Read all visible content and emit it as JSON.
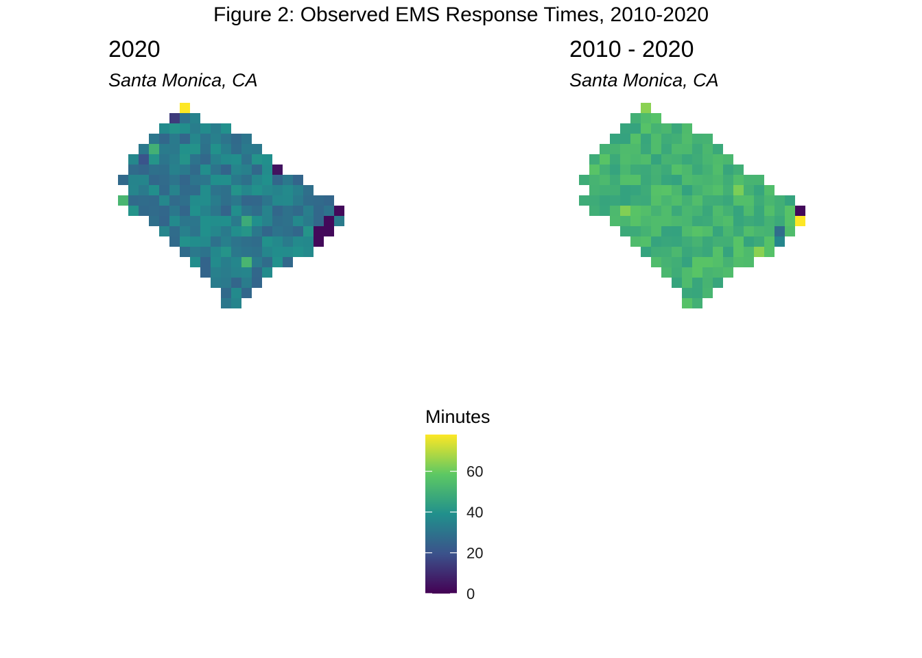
{
  "figure_title": "Figure 2: Observed EMS Response Times, 2010-2020",
  "colors": {
    "viridis_0": "#440154",
    "viridis_25": "#3b528b",
    "viridis_50": "#21908c",
    "viridis_75": "#5dc863",
    "viridis_100": "#fde725"
  },
  "chart_data": [
    {
      "type": "heatmap",
      "title": "2020",
      "subtitle": "Santa Monica, CA",
      "value_unit": "Minutes",
      "shape": "diamond-shaped grid of square cells, oriented NW–SE",
      "overall_color_level": "teal / blue, ~28–40 minutes",
      "notable_cells": [
        {
          "location": "top (northernmost) cell",
          "value": 78
        },
        {
          "location": "top-right cluster",
          "value": 60
        },
        {
          "location": "left edge",
          "value": 52
        },
        {
          "location": "east edge cluster",
          "value": 2
        },
        {
          "location": "east interior",
          "value": 4
        }
      ]
    },
    {
      "type": "heatmap",
      "title": "2010 - 2020",
      "subtitle": "Santa Monica, CA",
      "value_unit": "Minutes",
      "shape": "diamond-shaped grid of square cells, oriented NW–SE",
      "overall_color_level": "green, ~45–60 minutes",
      "notable_cells": [
        {
          "location": "east edge",
          "value": 78
        },
        {
          "location": "east edge",
          "value": 2
        },
        {
          "location": "east interior",
          "value": 28
        }
      ]
    }
  ],
  "legend": {
    "title": "Minutes",
    "ticks": [
      {
        "label": "60",
        "value": 60
      },
      {
        "label": "40",
        "value": 40
      },
      {
        "label": "20",
        "value": 20
      },
      {
        "label": "0",
        "value": 0
      }
    ],
    "min": 0,
    "max": 78
  }
}
